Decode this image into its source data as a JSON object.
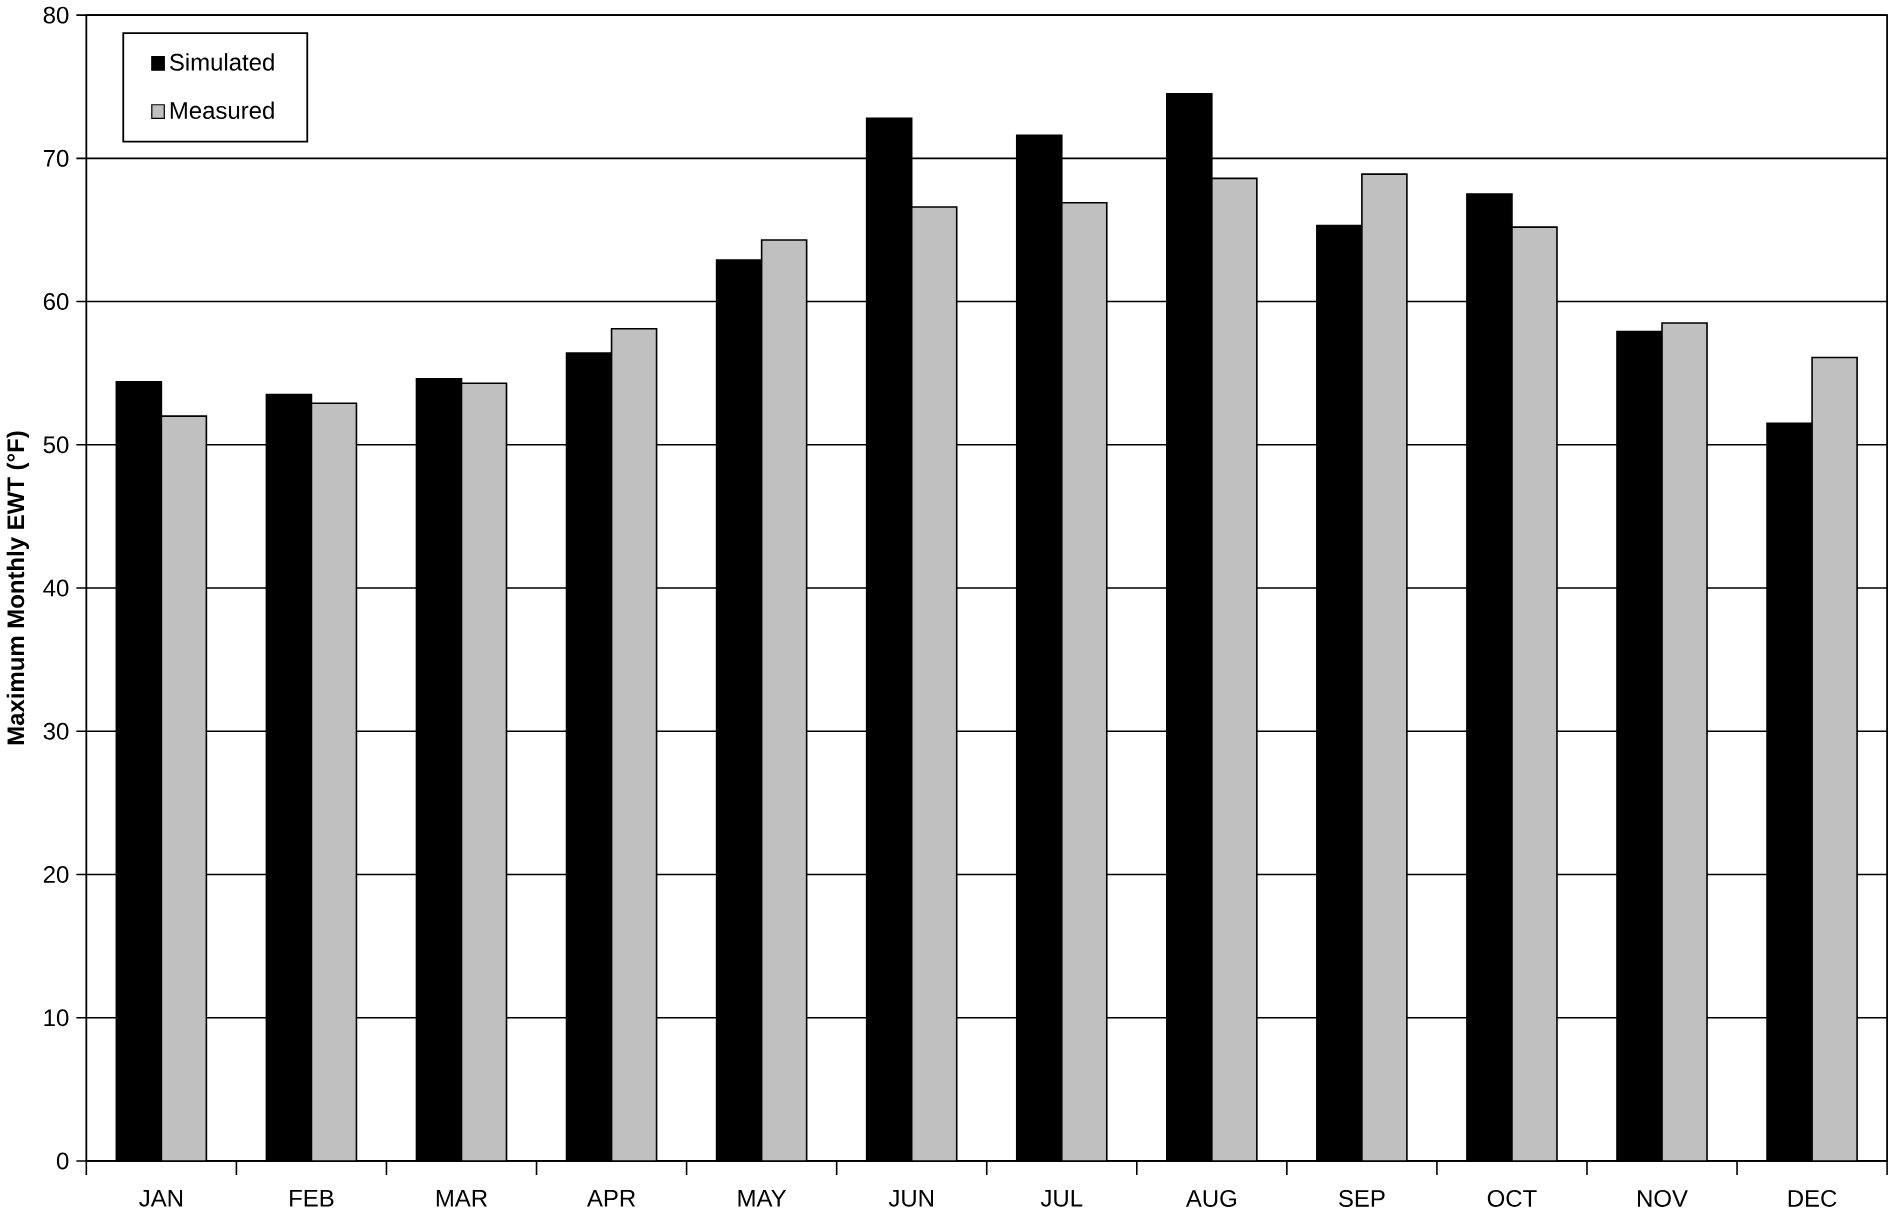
{
  "chart_data": {
    "type": "bar",
    "ylabel": "Maximum Monthly EWT (°F)",
    "categories": [
      "JAN",
      "FEB",
      "MAR",
      "APR",
      "MAY",
      "JUN",
      "JUL",
      "AUG",
      "SEP",
      "OCT",
      "NOV",
      "DEC"
    ],
    "series": [
      {
        "name": "Simulated",
        "color": "#000000",
        "values": [
          54.4,
          53.5,
          54.6,
          56.4,
          62.9,
          72.8,
          71.6,
          74.5,
          65.3,
          67.5,
          57.9,
          51.5
        ]
      },
      {
        "name": "Measured",
        "color": "#c0c0c0",
        "values": [
          52.0,
          52.9,
          54.3,
          58.1,
          64.3,
          66.6,
          66.9,
          68.6,
          68.9,
          65.2,
          58.5,
          56.1
        ]
      }
    ],
    "ylim": [
      0,
      80
    ],
    "yticks": [
      0,
      10,
      20,
      30,
      40,
      50,
      60,
      70,
      80
    ],
    "grid": "y",
    "legend": "top left"
  }
}
